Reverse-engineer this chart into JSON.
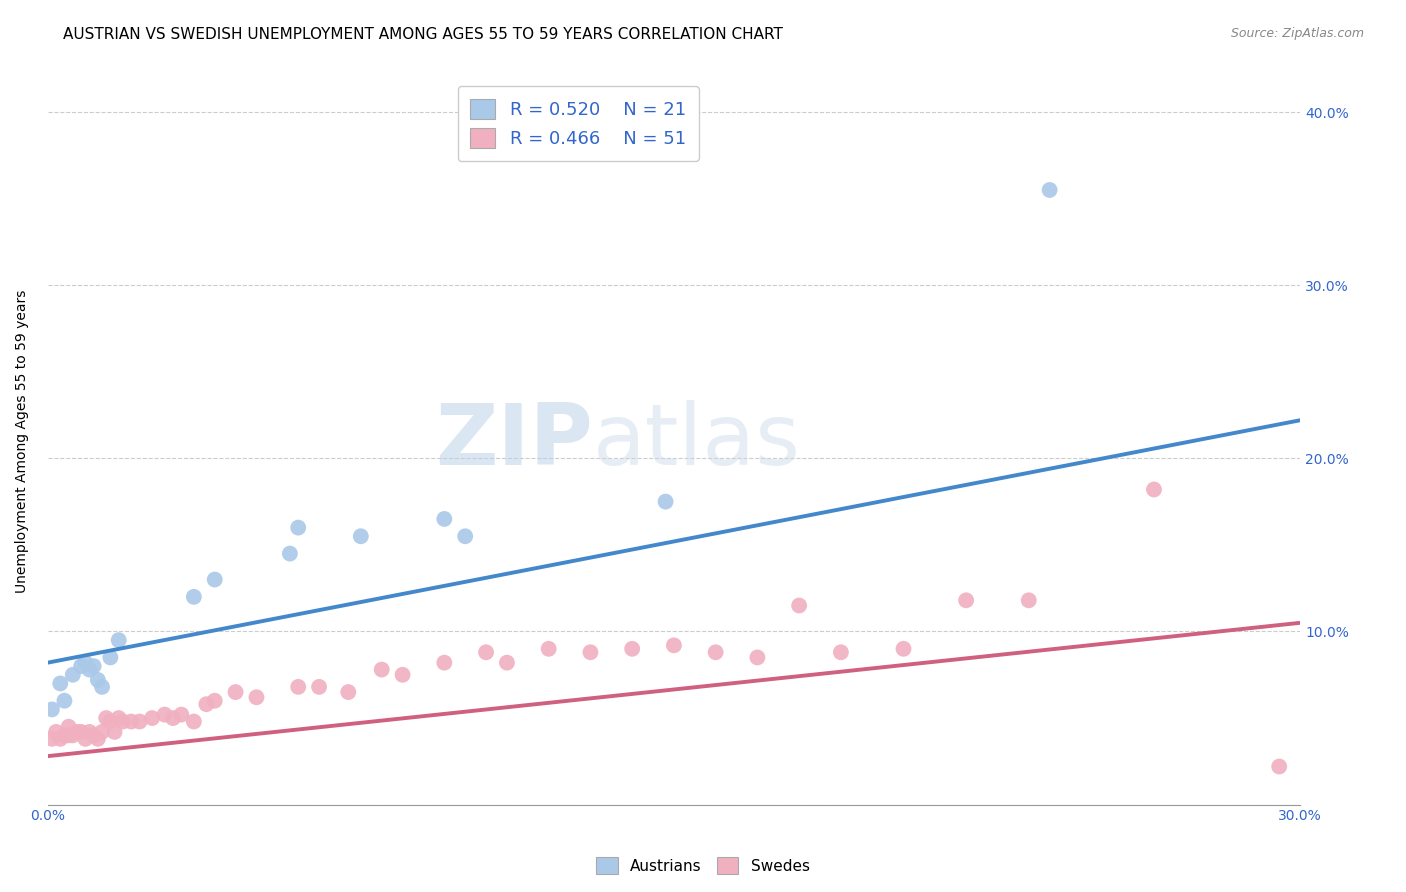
{
  "title": "AUSTRIAN VS SWEDISH UNEMPLOYMENT AMONG AGES 55 TO 59 YEARS CORRELATION CHART",
  "source": "Source: ZipAtlas.com",
  "ylabel": "Unemployment Among Ages 55 to 59 years",
  "xlim": [
    0.0,
    0.3
  ],
  "ylim": [
    0.0,
    0.42
  ],
  "xticks": [
    0.0,
    0.05,
    0.1,
    0.15,
    0.2,
    0.25,
    0.3
  ],
  "yticks": [
    0.0,
    0.1,
    0.2,
    0.3,
    0.4
  ],
  "ytick_labels": [
    "",
    "10.0%",
    "20.0%",
    "30.0%",
    "40.0%"
  ],
  "xtick_labels": [
    "0.0%",
    "",
    "",
    "",
    "",
    "",
    "30.0%"
  ],
  "background_color": "#ffffff",
  "grid_color": "#cccccc",
  "watermark_zip": "ZIP",
  "watermark_atlas": "atlas",
  "austria_color": "#aac8e8",
  "austria_line_color": "#4488cc",
  "sweden_color": "#f0b0c0",
  "sweden_line_color": "#d06080",
  "legend_austria_R": "0.520",
  "legend_austria_N": "21",
  "legend_sweden_R": "0.466",
  "legend_sweden_N": "51",
  "austria_scatter_x": [
    0.001,
    0.003,
    0.004,
    0.006,
    0.008,
    0.009,
    0.01,
    0.011,
    0.012,
    0.013,
    0.015,
    0.017,
    0.035,
    0.04,
    0.058,
    0.06,
    0.075,
    0.095,
    0.1,
    0.148,
    0.24
  ],
  "austria_scatter_y": [
    0.055,
    0.07,
    0.06,
    0.075,
    0.08,
    0.082,
    0.078,
    0.08,
    0.072,
    0.068,
    0.085,
    0.095,
    0.12,
    0.13,
    0.145,
    0.16,
    0.155,
    0.165,
    0.155,
    0.175,
    0.355
  ],
  "sweden_scatter_x": [
    0.001,
    0.002,
    0.003,
    0.004,
    0.005,
    0.005,
    0.006,
    0.007,
    0.008,
    0.009,
    0.01,
    0.011,
    0.012,
    0.013,
    0.014,
    0.015,
    0.016,
    0.017,
    0.018,
    0.02,
    0.022,
    0.025,
    0.028,
    0.03,
    0.032,
    0.035,
    0.038,
    0.04,
    0.045,
    0.05,
    0.06,
    0.065,
    0.072,
    0.08,
    0.085,
    0.095,
    0.105,
    0.11,
    0.12,
    0.13,
    0.14,
    0.15,
    0.16,
    0.17,
    0.18,
    0.19,
    0.205,
    0.22,
    0.235,
    0.265,
    0.295
  ],
  "sweden_scatter_y": [
    0.038,
    0.042,
    0.038,
    0.04,
    0.04,
    0.045,
    0.04,
    0.042,
    0.042,
    0.038,
    0.042,
    0.04,
    0.038,
    0.042,
    0.05,
    0.048,
    0.042,
    0.05,
    0.048,
    0.048,
    0.048,
    0.05,
    0.052,
    0.05,
    0.052,
    0.048,
    0.058,
    0.06,
    0.065,
    0.062,
    0.068,
    0.068,
    0.065,
    0.078,
    0.075,
    0.082,
    0.088,
    0.082,
    0.09,
    0.088,
    0.09,
    0.092,
    0.088,
    0.085,
    0.115,
    0.088,
    0.09,
    0.118,
    0.118,
    0.182,
    0.022
  ],
  "austria_line_x": [
    0.0,
    0.3
  ],
  "austria_line_y": [
    0.082,
    0.222
  ],
  "sweden_line_x": [
    0.0,
    0.3
  ],
  "sweden_line_y": [
    0.028,
    0.105
  ],
  "marker_size": 130,
  "title_fontsize": 11,
  "label_fontsize": 10,
  "tick_fontsize": 10,
  "legend_fontsize": 13
}
